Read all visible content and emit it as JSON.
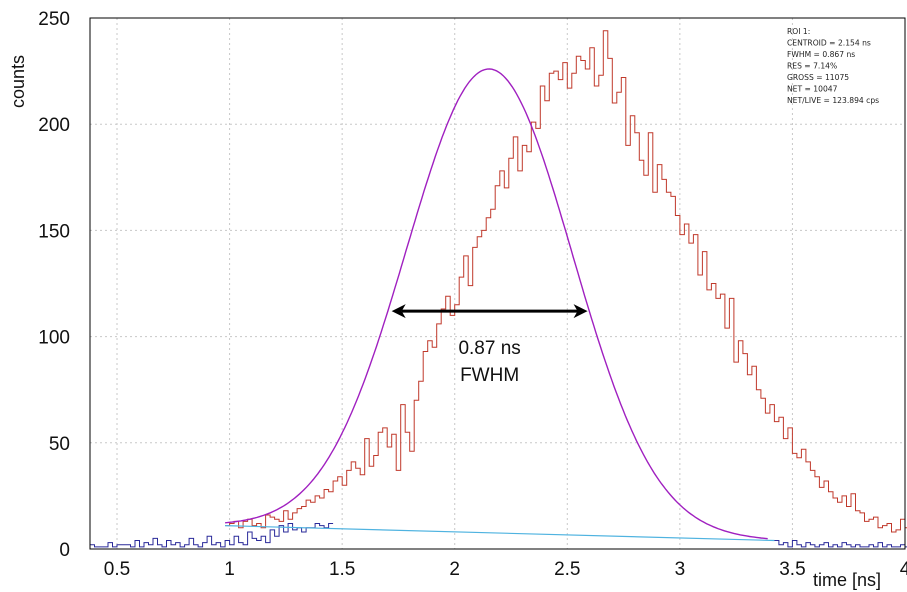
{
  "chart_data": {
    "type": "line",
    "xlabel": "time [ns]",
    "ylabel": "counts",
    "xlim": [
      0.38,
      4.0
    ],
    "ylim": [
      0,
      250
    ],
    "x_ticks": [
      0.5,
      1,
      1.5,
      2,
      2.5,
      3,
      3.5,
      4
    ],
    "x_tick_labels": [
      "0.5",
      "1",
      "1.5",
      "2",
      "2.5",
      "3",
      "3.5",
      "4"
    ],
    "y_ticks": [
      0,
      50,
      100,
      150,
      200,
      250
    ],
    "y_tick_labels": [
      "0",
      "50",
      "100",
      "150",
      "200",
      "250"
    ],
    "grid": true,
    "colors": {
      "histogram_outside_roi": "#2a2a9a",
      "histogram_roi": "#c0392b",
      "gaussian_fit": "#a020c0",
      "background_line": "#4fb3e0",
      "arrow": "#000000",
      "grid": "#c8c8c8"
    },
    "roi_box": {
      "lines": [
        "ROI 1:",
        "CENTROID = 2.154 ns",
        "FWHM = 0.867 ns",
        "RES = 7.14%",
        "GROSS = 11075",
        "NET = 10047",
        "NET/LIVE = 123.894 cps"
      ]
    },
    "annotation": {
      "line1": "0.87 ns",
      "line2": "FWHM",
      "arrow_x": [
        1.72,
        2.59
      ],
      "arrow_y": 112
    },
    "series": [
      {
        "role": "histogram_outside_roi",
        "bin_width": 0.02,
        "x_start": 0.38,
        "values": [
          2,
          1,
          1,
          1,
          3,
          1,
          2,
          2,
          2,
          1,
          4,
          1,
          3,
          2,
          5,
          2,
          1,
          4,
          2,
          3,
          1,
          2,
          5,
          2,
          1,
          3,
          6,
          2,
          3,
          1,
          4,
          2,
          6,
          3,
          2,
          8,
          5,
          4,
          6,
          3,
          9,
          6,
          11,
          8,
          12,
          9,
          10,
          8,
          10,
          10,
          12,
          11,
          10,
          12
        ]
      },
      {
        "role": "histogram_roi",
        "bin_width": 0.02,
        "x_start": 0.98,
        "values": [
          11,
          12,
          13,
          10,
          13,
          14,
          11,
          12,
          10,
          16,
          15,
          14,
          13,
          18,
          14,
          17,
          19,
          20,
          23,
          22,
          25,
          24,
          28,
          27,
          32,
          34,
          30,
          37,
          41,
          38,
          35,
          52,
          39,
          44,
          55,
          57,
          48,
          54,
          37,
          68,
          55,
          46,
          70,
          79,
          93,
          98,
          95,
          106,
          113,
          119,
          110,
          115,
          128,
          138,
          124,
          142,
          147,
          150,
          156,
          160,
          171,
          178,
          170,
          184,
          194,
          178,
          190,
          187,
          201,
          198,
          218,
          211,
          224,
          225,
          221,
          229,
          217,
          224,
          232,
          230,
          226,
          236,
          218,
          223,
          244,
          231,
          210,
          215,
          222,
          190,
          204,
          196,
          183,
          176,
          196,
          168,
          181,
          174,
          168,
          166,
          157,
          148,
          153,
          144,
          148,
          129,
          140,
          122,
          125,
          118,
          120,
          104,
          118,
          88,
          98,
          92,
          82,
          86,
          75,
          71,
          64,
          68,
          60,
          62,
          52,
          57,
          45,
          43,
          47,
          41,
          37,
          34,
          29,
          32,
          27,
          24,
          22,
          25,
          20,
          26,
          18,
          17,
          13,
          14,
          15,
          10,
          11,
          12,
          8,
          9,
          14,
          10,
          6,
          12,
          13,
          14,
          7,
          10,
          4,
          6,
          5,
          4,
          5,
          4,
          3
        ]
      },
      {
        "role": "gaussian_fit",
        "centroid": 2.154,
        "fwhm": 0.867,
        "peak": 226,
        "x_range": [
          0.98,
          3.39
        ]
      },
      {
        "role": "background_line",
        "x": [
          0.98,
          3.42
        ],
        "y": [
          11,
          4
        ]
      },
      {
        "role": "histogram_tail",
        "bin_width": 0.02,
        "x_start": 3.42,
        "values": [
          4,
          2,
          3,
          1,
          4,
          2,
          1,
          3,
          2,
          1,
          2,
          3,
          1,
          2,
          1,
          3,
          2,
          1,
          2,
          1,
          1,
          2,
          1,
          3,
          1,
          2,
          1,
          1,
          2,
          1,
          2,
          1,
          1,
          2,
          1,
          1,
          3,
          1,
          1,
          2,
          1,
          1,
          2,
          1,
          1,
          2,
          1,
          1
        ]
      }
    ]
  }
}
